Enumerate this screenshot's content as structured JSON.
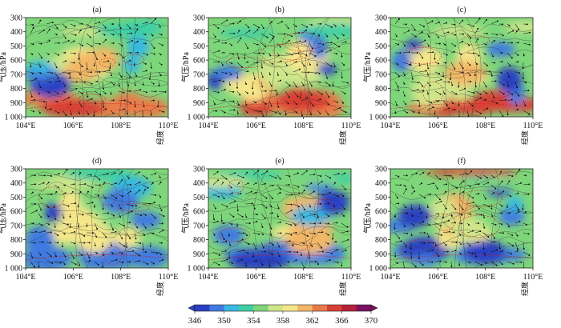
{
  "figure": {
    "panels": [
      {
        "label": "(a)",
        "ylabel": "气压/hPa",
        "xunit": "经度"
      },
      {
        "label": "(b)",
        "ylabel": "气压/hPa",
        "xunit": "经度"
      },
      {
        "label": "(c)",
        "ylabel": "气压/hPa",
        "xunit": "经度"
      },
      {
        "label": "(d)",
        "ylabel": "气压/hPa",
        "xunit": "经度"
      },
      {
        "label": "(e)",
        "ylabel": "气压/hPa",
        "xunit": "经度"
      },
      {
        "label": "(f)",
        "ylabel": "气压/hPa",
        "xunit": "经度"
      }
    ],
    "colorbar": {
      "ticks": [
        "346",
        "350",
        "354",
        "358",
        "362",
        "366",
        "370"
      ],
      "colors": [
        "#2b3fc4",
        "#3f7ae0",
        "#39b8e0",
        "#3ccfa6",
        "#7ed67a",
        "#cfe68a",
        "#f5e68a",
        "#f2b766",
        "#ea7a4a",
        "#d94034",
        "#b5203a",
        "#7a1060"
      ]
    }
  },
  "chart_data": {
    "type": "heatmap",
    "subplots": [
      "(a)",
      "(b)",
      "(c)",
      "(d)",
      "(e)",
      "(f)"
    ],
    "x_ticks": [
      "104°E",
      "106°E",
      "108°E",
      "110°E"
    ],
    "y_ticks": [
      "300",
      "400",
      "500",
      "600",
      "700",
      "800",
      "900",
      "1 000"
    ],
    "xlim": [
      104,
      110
    ],
    "ylim": [
      1000,
      300
    ],
    "ylabel": "气压/hPa",
    "xlabel": "经度",
    "colorbar_range": [
      346,
      370
    ],
    "colorbar_ticks": [
      346,
      350,
      354,
      358,
      362,
      366,
      370
    ]
  }
}
